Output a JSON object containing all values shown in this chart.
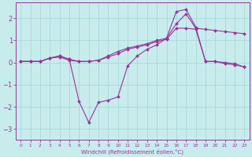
{
  "background_color": "#c8ecec",
  "grid_color": "#a8d8d8",
  "line_color": "#993399",
  "xlabel": "Windchill (Refroidissement éolien,°C)",
  "xlim": [
    -0.5,
    23.5
  ],
  "ylim": [
    -3.5,
    2.7
  ],
  "yticks": [
    -3,
    -2,
    -1,
    0,
    1,
    2
  ],
  "xticks": [
    0,
    1,
    2,
    3,
    4,
    5,
    6,
    7,
    8,
    9,
    10,
    11,
    12,
    13,
    14,
    15,
    16,
    17,
    18,
    19,
    20,
    21,
    22,
    23
  ],
  "line1_x": [
    0,
    1,
    2,
    3,
    4,
    5,
    6,
    7,
    8,
    9,
    10,
    11,
    12,
    13,
    14,
    15,
    16,
    17,
    18,
    19,
    20,
    21,
    22,
    23
  ],
  "line1_y": [
    0.05,
    0.05,
    0.05,
    0.2,
    0.3,
    0.15,
    -1.75,
    -2.7,
    -1.8,
    -1.7,
    -1.55,
    -0.15,
    0.3,
    0.6,
    0.8,
    1.1,
    2.3,
    2.4,
    1.6,
    0.05,
    0.05,
    -0.05,
    -0.1,
    -0.2
  ],
  "line2_x": [
    0,
    1,
    2,
    3,
    4,
    5,
    6,
    7,
    8,
    9,
    10,
    11,
    12,
    13,
    14,
    15,
    16,
    17,
    18,
    19,
    20,
    21,
    22,
    23
  ],
  "line2_y": [
    0.05,
    0.05,
    0.05,
    0.2,
    0.3,
    0.15,
    0.05,
    0.05,
    0.1,
    0.3,
    0.5,
    0.65,
    0.75,
    0.85,
    1.0,
    1.1,
    1.75,
    2.2,
    1.55,
    1.5,
    1.45,
    1.4,
    1.35,
    1.3
  ],
  "line3_x": [
    0,
    1,
    2,
    3,
    4,
    5,
    6,
    7,
    8,
    9,
    10,
    11,
    12,
    13,
    14,
    15,
    16,
    17,
    18,
    19,
    20,
    21,
    22,
    23
  ],
  "line3_y": [
    0.05,
    0.05,
    0.05,
    0.2,
    0.25,
    0.1,
    0.05,
    0.05,
    0.1,
    0.25,
    0.4,
    0.6,
    0.7,
    0.8,
    0.95,
    1.05,
    1.55,
    1.55,
    1.5,
    0.05,
    0.05,
    0.0,
    -0.05,
    -0.2
  ]
}
